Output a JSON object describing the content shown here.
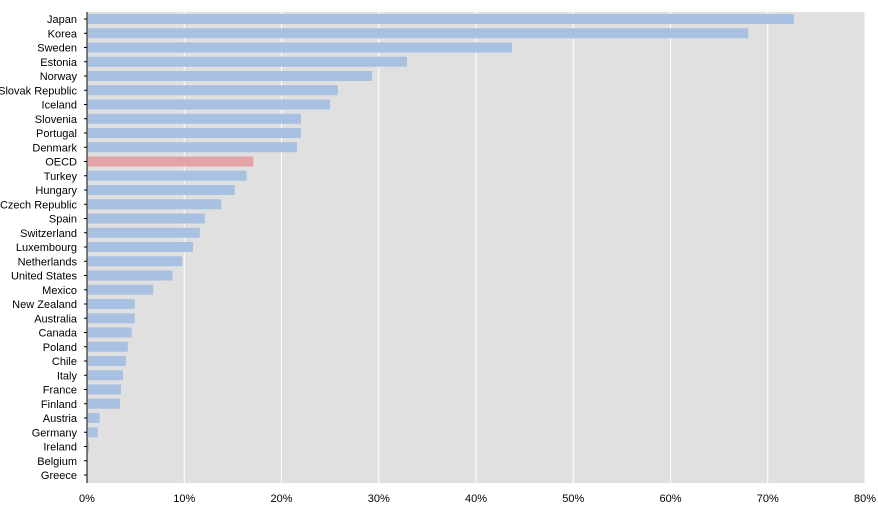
{
  "chart_data": {
    "type": "bar",
    "orientation": "horizontal",
    "title": "",
    "xlabel": "",
    "ylabel": "",
    "categories": [
      "Japan",
      "Korea",
      "Sweden",
      "Estonia",
      "Norway",
      "Slovak Republic",
      "Iceland",
      "Slovenia",
      "Portugal",
      "Denmark",
      "OECD",
      "Turkey",
      "Hungary",
      "Czech Republic",
      "Spain",
      "Switzerland",
      "Luxembourg",
      "Netherlands",
      "United States",
      "Mexico",
      "New Zealand",
      "Australia",
      "Canada",
      "Poland",
      "Chile",
      "Italy",
      "France",
      "Finland",
      "Austria",
      "Germany",
      "Ireland",
      "Belgium",
      "Greece"
    ],
    "values": [
      72.7,
      68.0,
      43.7,
      32.9,
      29.3,
      25.8,
      25.0,
      22.0,
      22.0,
      21.6,
      17.1,
      16.4,
      15.2,
      13.8,
      12.1,
      11.6,
      10.9,
      9.8,
      8.8,
      6.8,
      4.9,
      4.9,
      4.6,
      4.2,
      4.0,
      3.7,
      3.5,
      3.4,
      1.3,
      1.1,
      0.2,
      0.0,
      0.0
    ],
    "highlight": "OECD",
    "colors": {
      "bar": "#a8c1e2",
      "highlight": "#e2a3a6",
      "plot_background": "#e0e0e0",
      "grid": "#ffffff",
      "axis": "#000000"
    },
    "xlim": [
      0,
      80
    ],
    "xticks": [
      "0%",
      "10%",
      "20%",
      "30%",
      "40%",
      "50%",
      "60%",
      "70%",
      "80%"
    ],
    "grid": true,
    "legend": "none"
  }
}
